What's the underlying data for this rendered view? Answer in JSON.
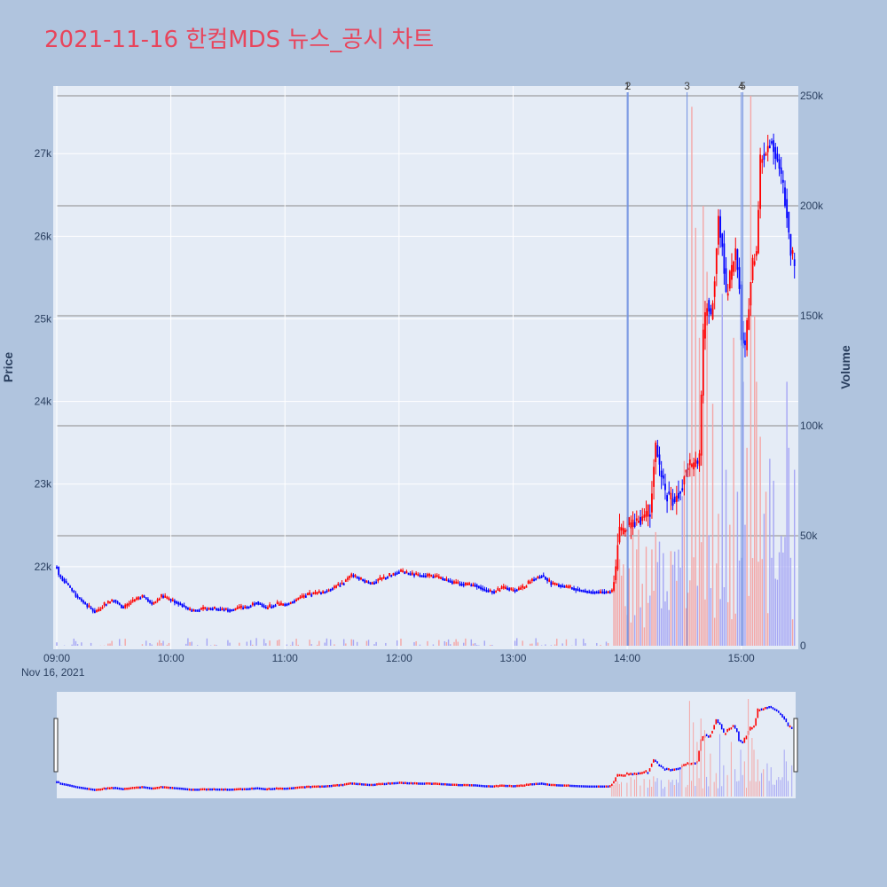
{
  "title": "2021-11-16 한컴MDS 뉴스_공시 차트",
  "colors": {
    "background": "#b0c4de",
    "plot_background": "#e5ecf6",
    "title": "#e8455c",
    "up": "#ff0000",
    "down": "#0000ff",
    "volume_up": "#f4a6a6",
    "volume_down": "#a6a6f4",
    "news_line": "#6f8fe0",
    "volume_grid": "#8a8a8a"
  },
  "chart_data": {
    "type": "candlestick",
    "x_axis": {
      "tick_labels": [
        "09:00",
        "10:00",
        "11:00",
        "12:00",
        "13:00",
        "14:00",
        "15:00"
      ],
      "tick_minutes": [
        0,
        60,
        120,
        180,
        240,
        300,
        360
      ],
      "range_minutes": [
        0,
        390
      ],
      "date_label": "Nov 16, 2021"
    },
    "y_price": {
      "label": "Price",
      "range": [
        21000,
        27700
      ],
      "ticks": [
        22000,
        23000,
        24000,
        25000,
        26000,
        27000
      ],
      "tick_labels": [
        "22k",
        "23k",
        "24k",
        "25k",
        "26k",
        "27k"
      ]
    },
    "y_volume": {
      "label": "Volume",
      "range": [
        0,
        250000
      ],
      "ticks": [
        0,
        50000,
        100000,
        150000,
        200000,
        250000
      ],
      "tick_labels": [
        "0",
        "50k",
        "100k",
        "150k",
        "200k",
        "250k"
      ]
    },
    "price_anchors": [
      [
        0,
        22000
      ],
      [
        1,
        21900
      ],
      [
        5,
        21800
      ],
      [
        10,
        21650
      ],
      [
        15,
        21550
      ],
      [
        20,
        21450
      ],
      [
        25,
        21550
      ],
      [
        30,
        21600
      ],
      [
        35,
        21500
      ],
      [
        40,
        21600
      ],
      [
        45,
        21650
      ],
      [
        50,
        21550
      ],
      [
        55,
        21650
      ],
      [
        60,
        21600
      ],
      [
        65,
        21550
      ],
      [
        70,
        21480
      ],
      [
        75,
        21480
      ],
      [
        80,
        21500
      ],
      [
        90,
        21480
      ],
      [
        100,
        21520
      ],
      [
        105,
        21580
      ],
      [
        110,
        21500
      ],
      [
        115,
        21550
      ],
      [
        120,
        21550
      ],
      [
        125,
        21600
      ],
      [
        130,
        21650
      ],
      [
        140,
        21700
      ],
      [
        150,
        21800
      ],
      [
        155,
        21900
      ],
      [
        160,
        21850
      ],
      [
        165,
        21800
      ],
      [
        170,
        21850
      ],
      [
        180,
        21950
      ],
      [
        185,
        21920
      ],
      [
        190,
        21900
      ],
      [
        200,
        21880
      ],
      [
        210,
        21800
      ],
      [
        220,
        21780
      ],
      [
        225,
        21720
      ],
      [
        230,
        21700
      ],
      [
        235,
        21750
      ],
      [
        240,
        21720
      ],
      [
        245,
        21750
      ],
      [
        250,
        21850
      ],
      [
        255,
        21900
      ],
      [
        260,
        21800
      ],
      [
        270,
        21750
      ],
      [
        275,
        21720
      ],
      [
        280,
        21700
      ],
      [
        285,
        21700
      ],
      [
        292,
        21700
      ],
      [
        294,
        22000
      ],
      [
        295,
        22300
      ],
      [
        296,
        22400
      ],
      [
        300,
        22500
      ],
      [
        305,
        22550
      ],
      [
        310,
        22650
      ],
      [
        312,
        22700
      ],
      [
        315,
        23500
      ],
      [
        317,
        23200
      ],
      [
        320,
        22900
      ],
      [
        325,
        22800
      ],
      [
        328,
        22950
      ],
      [
        330,
        23100
      ],
      [
        333,
        23250
      ],
      [
        335,
        23200
      ],
      [
        338,
        23300
      ],
      [
        340,
        24800
      ],
      [
        342,
        25200
      ],
      [
        344,
        25000
      ],
      [
        346,
        25500
      ],
      [
        348,
        26200
      ],
      [
        350,
        25900
      ],
      [
        352,
        25300
      ],
      [
        355,
        25600
      ],
      [
        357,
        25800
      ],
      [
        359,
        25400
      ],
      [
        360,
        24800
      ],
      [
        362,
        24600
      ],
      [
        364,
        25200
      ],
      [
        366,
        25700
      ],
      [
        368,
        25800
      ],
      [
        370,
        26900
      ],
      [
        372,
        27000
      ],
      [
        374,
        27100
      ],
      [
        376,
        27200
      ],
      [
        378,
        27000
      ],
      [
        380,
        26800
      ],
      [
        382,
        26600
      ],
      [
        384,
        26300
      ],
      [
        386,
        25800
      ],
      [
        388,
        25700
      ]
    ],
    "volume_spikes": [
      [
        299,
        18000
      ],
      [
        300,
        14000
      ],
      [
        310,
        45000
      ],
      [
        314,
        25000
      ],
      [
        316,
        38000
      ],
      [
        318,
        17000
      ],
      [
        329,
        68000
      ],
      [
        330,
        84000
      ],
      [
        334,
        245000
      ],
      [
        336,
        190000
      ],
      [
        338,
        140000
      ],
      [
        340,
        200000
      ],
      [
        342,
        170000
      ],
      [
        345,
        110000
      ],
      [
        348,
        60000
      ],
      [
        350,
        160000
      ],
      [
        352,
        80000
      ],
      [
        354,
        55000
      ],
      [
        356,
        140000
      ],
      [
        358,
        70000
      ],
      [
        360,
        40000
      ],
      [
        361,
        120000
      ],
      [
        362,
        55000
      ],
      [
        363,
        90000
      ],
      [
        365,
        250000
      ],
      [
        367,
        150000
      ],
      [
        368,
        120000
      ],
      [
        370,
        95000
      ],
      [
        372,
        60000
      ],
      [
        373,
        70000
      ],
      [
        375,
        85000
      ],
      [
        377,
        75000
      ],
      [
        379,
        30000
      ],
      [
        381,
        50000
      ],
      [
        384,
        120000
      ],
      [
        385,
        90000
      ],
      [
        386,
        40000
      ],
      [
        388,
        80000
      ]
    ],
    "news_markers": [
      {
        "label": "1",
        "minute": 300
      },
      {
        "label": "2",
        "minute": 300.5
      },
      {
        "label": "3",
        "minute": 331.5
      },
      {
        "label": "4",
        "minute": 360
      },
      {
        "label": "5",
        "minute": 360.8
      }
    ]
  }
}
